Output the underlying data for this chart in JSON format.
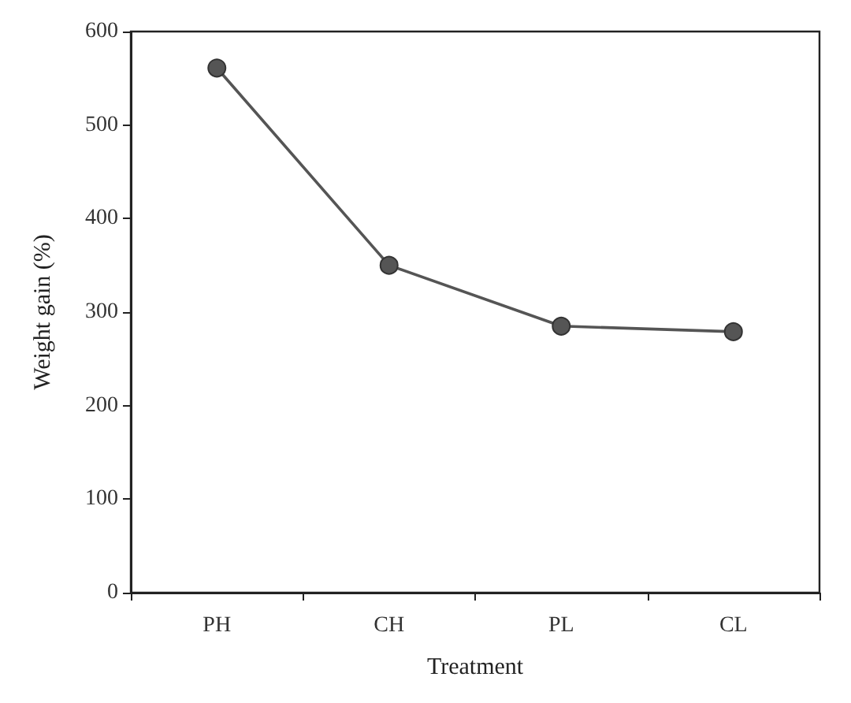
{
  "chart_data": {
    "type": "line",
    "xlabel": "Treatment",
    "ylabel": "Weight gain (%)",
    "categories": [
      "PH",
      "CH",
      "PL",
      "CL"
    ],
    "series": [
      {
        "color": "#555555",
        "values": [
          561,
          350,
          285,
          279
        ]
      }
    ],
    "ylim": [
      0,
      600
    ],
    "yticks": [
      0,
      100,
      200,
      300,
      400,
      500,
      600
    ],
    "grid": false,
    "marker": "circle",
    "line_style": "solid"
  }
}
